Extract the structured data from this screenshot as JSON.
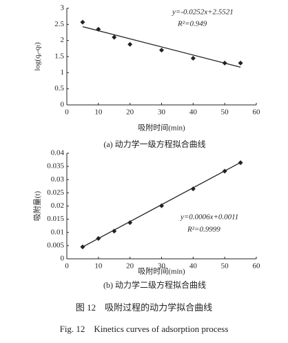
{
  "chart_data": [
    {
      "type": "scatter",
      "x_label": "吸附时间(min)",
      "y_label": "log(qₑ-qₜ)",
      "caption": "(a) 动力学一级方程拟合曲线",
      "annotations": [
        "y=-0.0252x+2.5521",
        "R²=0.949"
      ],
      "xlim": [
        0,
        60
      ],
      "xticks": [
        0,
        10,
        20,
        30,
        40,
        50,
        60
      ],
      "ylim": [
        0,
        3
      ],
      "yticks": [
        0,
        0.5,
        1,
        1.5,
        2,
        2.5,
        3
      ],
      "series": [
        {
          "color": "#222222",
          "marker": "diamond",
          "x": [
            5,
            10,
            15,
            20,
            30,
            40,
            50,
            55
          ],
          "values": [
            2.57,
            2.35,
            2.1,
            1.88,
            1.7,
            1.45,
            1.3,
            1.3
          ]
        },
        {
          "color": "#222222",
          "marker": "line",
          "x": [
            5,
            55
          ],
          "values": [
            2.43,
            1.17
          ]
        }
      ]
    },
    {
      "type": "scatter",
      "x_label": "吸附时间(min)",
      "y_label": "吸附量(t)",
      "caption": "(b) 动力学二级方程拟合曲线",
      "annotations": [
        "y=0.0006x+0.0011",
        "R²=0.9999"
      ],
      "xlim": [
        0,
        60
      ],
      "xticks": [
        0,
        10,
        20,
        30,
        40,
        50,
        60
      ],
      "ylim": [
        0,
        0.04
      ],
      "yticks": [
        0,
        0.005,
        0.01,
        0.015,
        0.02,
        0.025,
        0.03,
        0.035,
        0.04
      ],
      "series": [
        {
          "color": "#222222",
          "marker": "diamond",
          "x": [
            5,
            10,
            15,
            20,
            30,
            40,
            50,
            55
          ],
          "values": [
            0.0045,
            0.0077,
            0.0105,
            0.0137,
            0.0201,
            0.0265,
            0.0332,
            0.0364
          ]
        },
        {
          "color": "#222222",
          "marker": "line",
          "x": [
            5,
            55
          ],
          "values": [
            0.0045,
            0.0365
          ]
        }
      ]
    }
  ],
  "figure_caption": {
    "zh": "图 12　吸附过程的动力学拟合曲线",
    "en": "Fig. 12　Kinetics curves of adsorption process"
  }
}
